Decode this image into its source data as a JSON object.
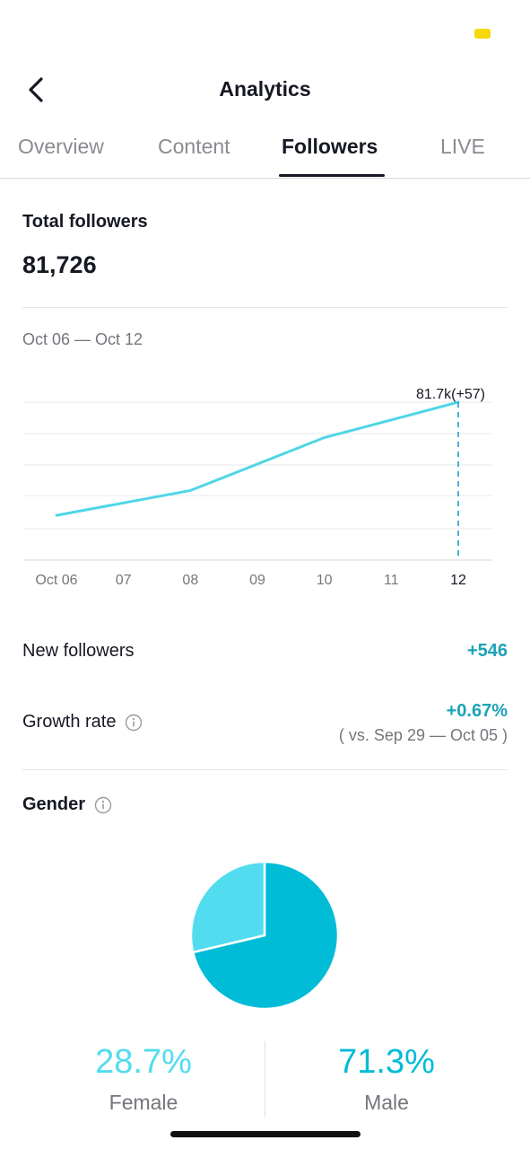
{
  "header": {
    "title": "Analytics"
  },
  "tabs": [
    {
      "label": "Overview"
    },
    {
      "label": "Content"
    },
    {
      "label": "Followers"
    },
    {
      "label": "LIVE"
    }
  ],
  "total_followers": {
    "label": "Total followers",
    "value": "81,726"
  },
  "date_range": "Oct 06 — Oct 12",
  "chart_data": {
    "type": "line",
    "categories": [
      "Oct 06",
      "07",
      "08",
      "09",
      "10",
      "11",
      "12"
    ],
    "values": [
      81180,
      null,
      81300,
      null,
      81555,
      null,
      81726
    ],
    "annotation": "81.7k(+57)",
    "grid": true,
    "color": "#4fd6e6"
  },
  "new_followers": {
    "label": "New followers",
    "value": "+546"
  },
  "growth_rate": {
    "label": "Growth rate",
    "value": "+0.67%",
    "comparison": "( vs. Sep 29 — Oct 05 )"
  },
  "gender": {
    "label": "Gender",
    "female": {
      "percent": "28.7%",
      "label": "Female",
      "fraction": 0.287,
      "color": "#51dcef"
    },
    "male": {
      "percent": "71.3%",
      "label": "Male",
      "fraction": 0.713,
      "color": "#00bcd6"
    }
  },
  "icons": {
    "back": "chevron-left-icon",
    "info": "info-icon"
  }
}
